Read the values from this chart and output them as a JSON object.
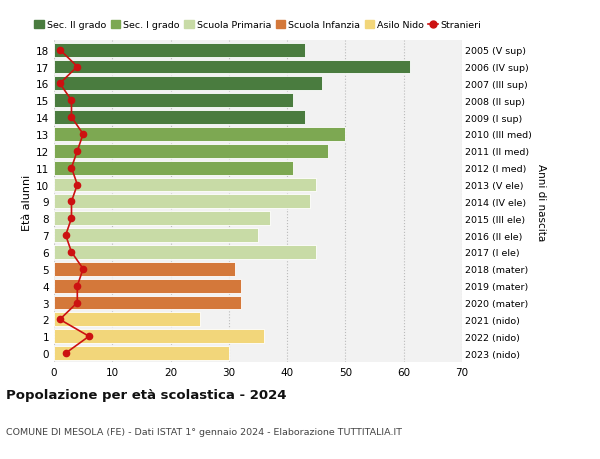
{
  "ages": [
    18,
    17,
    16,
    15,
    14,
    13,
    12,
    11,
    10,
    9,
    8,
    7,
    6,
    5,
    4,
    3,
    2,
    1,
    0
  ],
  "bar_values": [
    43,
    61,
    46,
    41,
    43,
    50,
    47,
    41,
    45,
    44,
    37,
    35,
    45,
    31,
    32,
    32,
    25,
    36,
    30
  ],
  "stranieri_values": [
    1,
    4,
    1,
    3,
    3,
    5,
    4,
    3,
    4,
    3,
    3,
    2,
    3,
    5,
    4,
    4,
    1,
    6,
    2
  ],
  "right_labels": [
    "2005 (V sup)",
    "2006 (IV sup)",
    "2007 (III sup)",
    "2008 (II sup)",
    "2009 (I sup)",
    "2010 (III med)",
    "2011 (II med)",
    "2012 (I med)",
    "2013 (V ele)",
    "2014 (IV ele)",
    "2015 (III ele)",
    "2016 (II ele)",
    "2017 (I ele)",
    "2018 (mater)",
    "2019 (mater)",
    "2020 (mater)",
    "2021 (nido)",
    "2022 (nido)",
    "2023 (nido)"
  ],
  "bar_colors": [
    "#4a7c3f",
    "#4a7c3f",
    "#4a7c3f",
    "#4a7c3f",
    "#4a7c3f",
    "#7da852",
    "#7da852",
    "#7da852",
    "#c8dba6",
    "#c8dba6",
    "#c8dba6",
    "#c8dba6",
    "#c8dba6",
    "#d4783a",
    "#d4783a",
    "#d4783a",
    "#f2d67a",
    "#f2d67a",
    "#f2d67a"
  ],
  "legend_labels": [
    "Sec. II grado",
    "Sec. I grado",
    "Scuola Primaria",
    "Scuola Infanzia",
    "Asilo Nido",
    "Stranieri"
  ],
  "legend_colors": [
    "#4a7c3f",
    "#7da852",
    "#c8dba6",
    "#d4783a",
    "#f2d67a",
    "#cc1111"
  ],
  "ylabel": "Età alunni",
  "right_ylabel": "Anni di nascita",
  "title": "Popolazione per età scolastica - 2024",
  "subtitle": "COMUNE DI MESOLA (FE) - Dati ISTAT 1° gennaio 2024 - Elaborazione TUTTITALIA.IT",
  "xlim": [
    0,
    70
  ],
  "stranieri_color": "#cc1111",
  "background_color": "#f2f2f2",
  "grid_color": "#bbbbbb"
}
